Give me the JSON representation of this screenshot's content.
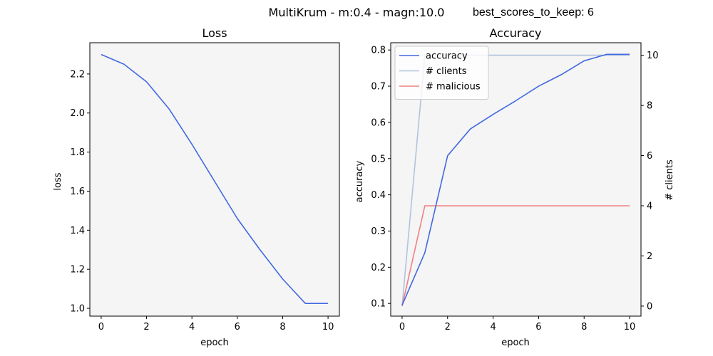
{
  "header": {
    "suptitle": "MultiKrum - m:0.4 - magn:10.0",
    "annotation": "best_scores_to_keep: 6"
  },
  "chart_data": [
    {
      "type": "line",
      "title": "Loss",
      "xlabel": "epoch",
      "ylabel": "loss",
      "xlim": [
        -0.5,
        10.5
      ],
      "ylim": [
        0.96,
        2.36
      ],
      "xticks": [
        0,
        2,
        4,
        6,
        8,
        10
      ],
      "yticks": [
        1.0,
        1.2,
        1.4,
        1.6,
        1.8,
        2.0,
        2.2
      ],
      "ytick_labels": [
        "1.0",
        "1.2",
        "1.4",
        "1.6",
        "1.8",
        "2.0",
        "2.2"
      ],
      "grid": false,
      "series": [
        {
          "color": "#4169E1",
          "x": [
            0,
            1,
            2,
            3,
            4,
            5,
            6,
            7,
            8,
            9,
            10
          ],
          "y": [
            2.3,
            2.25,
            2.16,
            2.02,
            1.84,
            1.65,
            1.46,
            1.3,
            1.15,
            1.025,
            1.025
          ]
        }
      ]
    },
    {
      "type": "line",
      "title": "Accuracy",
      "xlabel": "epoch",
      "ylabel": "accuracy",
      "y2label": "# clients",
      "xlim": [
        -0.5,
        10.5
      ],
      "ylim": [
        0.065,
        0.82
      ],
      "y2lim": [
        -0.4,
        10.5
      ],
      "xticks": [
        0,
        2,
        4,
        6,
        8,
        10
      ],
      "yticks": [
        0.1,
        0.2,
        0.3,
        0.4,
        0.5,
        0.6,
        0.7,
        0.8
      ],
      "ytick_labels": [
        "0.1",
        "0.2",
        "0.3",
        "0.4",
        "0.5",
        "0.6",
        "0.7",
        "0.8"
      ],
      "y2ticks": [
        0,
        2,
        4,
        6,
        8,
        10
      ],
      "legend": "upper-left",
      "grid": false,
      "series": [
        {
          "name": "accuracy",
          "axis": "left",
          "color": "#4169E1",
          "x": [
            0,
            1,
            2,
            3,
            4,
            5,
            6,
            7,
            8,
            9,
            10
          ],
          "y": [
            0.095,
            0.24,
            0.508,
            0.582,
            0.622,
            0.66,
            0.7,
            0.732,
            0.77,
            0.788,
            0.788
          ]
        },
        {
          "name": "# clients",
          "axis": "right",
          "color": "#B0C4DE",
          "x": [
            0,
            1,
            2,
            3,
            4,
            5,
            6,
            7,
            8,
            9,
            10
          ],
          "y": [
            0,
            10,
            10,
            10,
            10,
            10,
            10,
            10,
            10,
            10,
            10
          ]
        },
        {
          "name": "# malicious",
          "axis": "right",
          "color": "#F08080",
          "x": [
            0,
            1,
            2,
            3,
            4,
            5,
            6,
            7,
            8,
            9,
            10
          ],
          "y": [
            0,
            4,
            4,
            4,
            4,
            4,
            4,
            4,
            4,
            4,
            4
          ]
        }
      ]
    }
  ]
}
